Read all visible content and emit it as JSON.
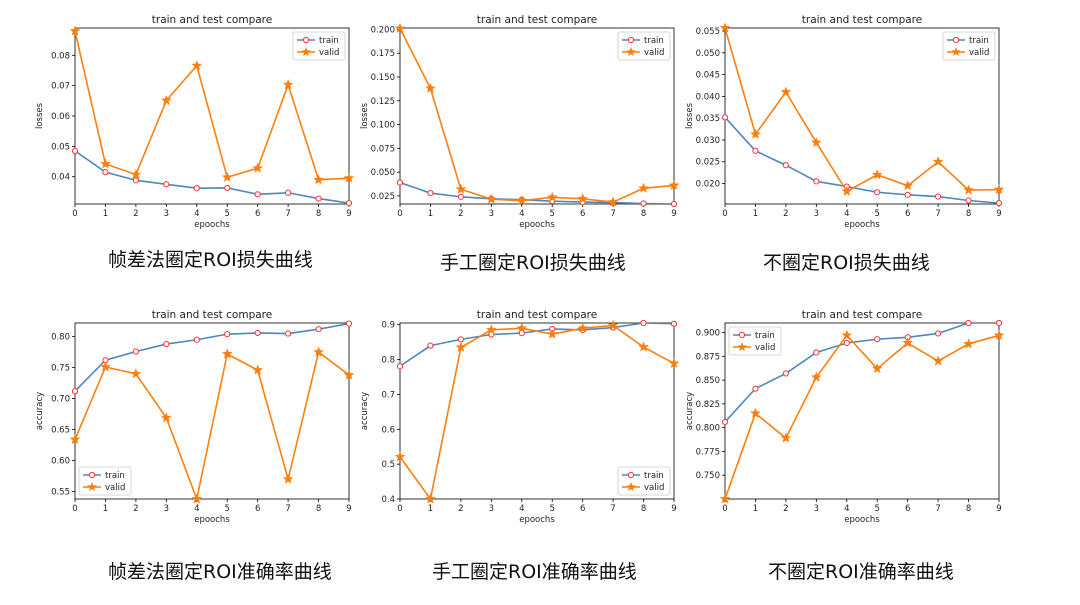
{
  "colors": {
    "train": "#4d87be",
    "valid": "#ff7f0e",
    "marker_edge": "#ff3333"
  },
  "chart_data": [
    {
      "type": "line",
      "title": "train and test compare",
      "xlabel": "epoochs",
      "ylabel": "losses",
      "caption": "帧差法圈定ROI损失曲线",
      "x": [
        0,
        1,
        2,
        3,
        4,
        5,
        6,
        7,
        8,
        9
      ],
      "xlim": [
        0,
        9
      ],
      "ylim": [
        0.031,
        0.089
      ],
      "xticks": [
        "0",
        "1",
        "2",
        "3",
        "4",
        "5",
        "6",
        "7",
        "8",
        "9"
      ],
      "yticks": [
        0.04,
        0.05,
        0.06,
        0.07,
        0.08
      ],
      "ytick_labels": [
        "0.04",
        "0.05",
        "0.06",
        "0.07",
        "0.08"
      ],
      "legend": "top-right",
      "series": [
        {
          "name": "train",
          "values": [
            0.0485,
            0.0415,
            0.0388,
            0.0375,
            0.0362,
            0.0363,
            0.0342,
            0.0347,
            0.0328,
            0.0313
          ]
        },
        {
          "name": "valid",
          "values": [
            0.088,
            0.0442,
            0.0407,
            0.0651,
            0.0766,
            0.0398,
            0.0428,
            0.0703,
            0.039,
            0.0395
          ]
        }
      ]
    },
    {
      "type": "line",
      "title": "train and test compare",
      "xlabel": "epoochs",
      "ylabel": "losses",
      "caption": "手工圈定ROI损失曲线",
      "x": [
        0,
        1,
        2,
        3,
        4,
        5,
        6,
        7,
        8,
        9
      ],
      "xlim": [
        0,
        9
      ],
      "ylim": [
        0.0165,
        0.2015
      ],
      "xticks": [
        "0",
        "1",
        "2",
        "3",
        "4",
        "5",
        "6",
        "7",
        "8",
        "9"
      ],
      "yticks": [
        0.025,
        0.05,
        0.075,
        0.1,
        0.125,
        0.15,
        0.175,
        0.2
      ],
      "ytick_labels": [
        "0.025",
        "0.050",
        "0.075",
        "0.100",
        "0.125",
        "0.150",
        "0.175",
        "0.200"
      ],
      "legend": "top-right",
      "series": [
        {
          "name": "train",
          "values": [
            0.039,
            0.028,
            0.024,
            0.022,
            0.021,
            0.0195,
            0.0185,
            0.018,
            0.017,
            0.0165
          ]
        },
        {
          "name": "valid",
          "values": [
            0.201,
            0.138,
            0.032,
            0.0215,
            0.02,
            0.0235,
            0.022,
            0.0185,
            0.033,
            0.036
          ]
        }
      ]
    },
    {
      "type": "line",
      "title": "train and test compare",
      "xlabel": "epoochs",
      "ylabel": "losses",
      "caption": "不圈定ROI损失曲线",
      "x": [
        0,
        1,
        2,
        3,
        4,
        5,
        6,
        7,
        8,
        9
      ],
      "xlim": [
        0,
        9
      ],
      "ylim": [
        0.0153,
        0.0557
      ],
      "xticks": [
        "0",
        "1",
        "2",
        "3",
        "4",
        "5",
        "6",
        "7",
        "8",
        "9"
      ],
      "yticks": [
        0.02,
        0.025,
        0.03,
        0.035,
        0.04,
        0.045,
        0.05,
        0.055
      ],
      "ytick_labels": [
        "0.020",
        "0.025",
        "0.030",
        "0.035",
        "0.040",
        "0.045",
        "0.050",
        "0.055"
      ],
      "legend": "top-right",
      "series": [
        {
          "name": "train",
          "values": [
            0.0352,
            0.0275,
            0.0242,
            0.0205,
            0.0193,
            0.018,
            0.0174,
            0.017,
            0.0161,
            0.0155
          ]
        },
        {
          "name": "valid",
          "values": [
            0.0557,
            0.0313,
            0.041,
            0.0294,
            0.0182,
            0.022,
            0.0195,
            0.025,
            0.0185,
            0.0186
          ]
        }
      ]
    },
    {
      "type": "line",
      "title": "train and test compare",
      "xlabel": "epoochs",
      "ylabel": "accuracy",
      "caption": "帧差法圈定ROI准确率曲线",
      "x": [
        0,
        1,
        2,
        3,
        4,
        5,
        6,
        7,
        8,
        9
      ],
      "xlim": [
        0,
        9
      ],
      "ylim": [
        0.538,
        0.822
      ],
      "xticks": [
        "0",
        "1",
        "2",
        "3",
        "4",
        "5",
        "6",
        "7",
        "8",
        "9"
      ],
      "yticks": [
        0.55,
        0.6,
        0.65,
        0.7,
        0.75,
        0.8
      ],
      "ytick_labels": [
        "0.55",
        "0.60",
        "0.65",
        "0.70",
        "0.75",
        "0.80"
      ],
      "legend": "bottom-left",
      "series": [
        {
          "name": "train",
          "values": [
            0.712,
            0.762,
            0.776,
            0.788,
            0.795,
            0.804,
            0.806,
            0.805,
            0.812,
            0.821
          ]
        },
        {
          "name": "valid",
          "values": [
            0.634,
            0.751,
            0.74,
            0.669,
            0.538,
            0.772,
            0.746,
            0.57,
            0.775,
            0.738
          ]
        }
      ]
    },
    {
      "type": "line",
      "title": "train and test compare",
      "xlabel": "epoochs",
      "ylabel": "accuracy",
      "caption": "手工圈定ROI准确率曲线",
      "x": [
        0,
        1,
        2,
        3,
        4,
        5,
        6,
        7,
        8,
        9
      ],
      "xlim": [
        0,
        9
      ],
      "ylim": [
        0.4,
        0.905
      ],
      "xticks": [
        "0",
        "1",
        "2",
        "3",
        "4",
        "5",
        "6",
        "7",
        "8",
        "9"
      ],
      "yticks": [
        0.4,
        0.5,
        0.6,
        0.7,
        0.8,
        0.9
      ],
      "ytick_labels": [
        "0.4",
        "0.5",
        "0.6",
        "0.7",
        "0.8",
        "0.9"
      ],
      "legend": "bottom-right",
      "series": [
        {
          "name": "train",
          "values": [
            0.781,
            0.84,
            0.858,
            0.872,
            0.876,
            0.888,
            0.885,
            0.892,
            0.905,
            0.903
          ]
        },
        {
          "name": "valid",
          "values": [
            0.521,
            0.4,
            0.835,
            0.885,
            0.89,
            0.873,
            0.89,
            0.898,
            0.836,
            0.789
          ]
        }
      ]
    },
    {
      "type": "line",
      "title": "train and test compare",
      "xlabel": "epoochs",
      "ylabel": "accuracy",
      "caption": "不圈定ROI准确率曲线",
      "x": [
        0,
        1,
        2,
        3,
        4,
        5,
        6,
        7,
        8,
        9
      ],
      "xlim": [
        0,
        9
      ],
      "ylim": [
        0.725,
        0.91
      ],
      "xticks": [
        "0",
        "1",
        "2",
        "3",
        "4",
        "5",
        "6",
        "7",
        "8",
        "9"
      ],
      "yticks": [
        0.75,
        0.775,
        0.8,
        0.825,
        0.85,
        0.875,
        0.9
      ],
      "ytick_labels": [
        "0.750",
        "0.775",
        "0.800",
        "0.825",
        "0.850",
        "0.875",
        "0.900"
      ],
      "legend": "top-left",
      "series": [
        {
          "name": "train",
          "values": [
            0.806,
            0.841,
            0.857,
            0.879,
            0.889,
            0.893,
            0.895,
            0.899,
            0.91,
            0.91
          ]
        },
        {
          "name": "valid",
          "values": [
            0.725,
            0.815,
            0.789,
            0.853,
            0.897,
            0.862,
            0.889,
            0.87,
            0.888,
            0.897
          ]
        }
      ]
    }
  ]
}
